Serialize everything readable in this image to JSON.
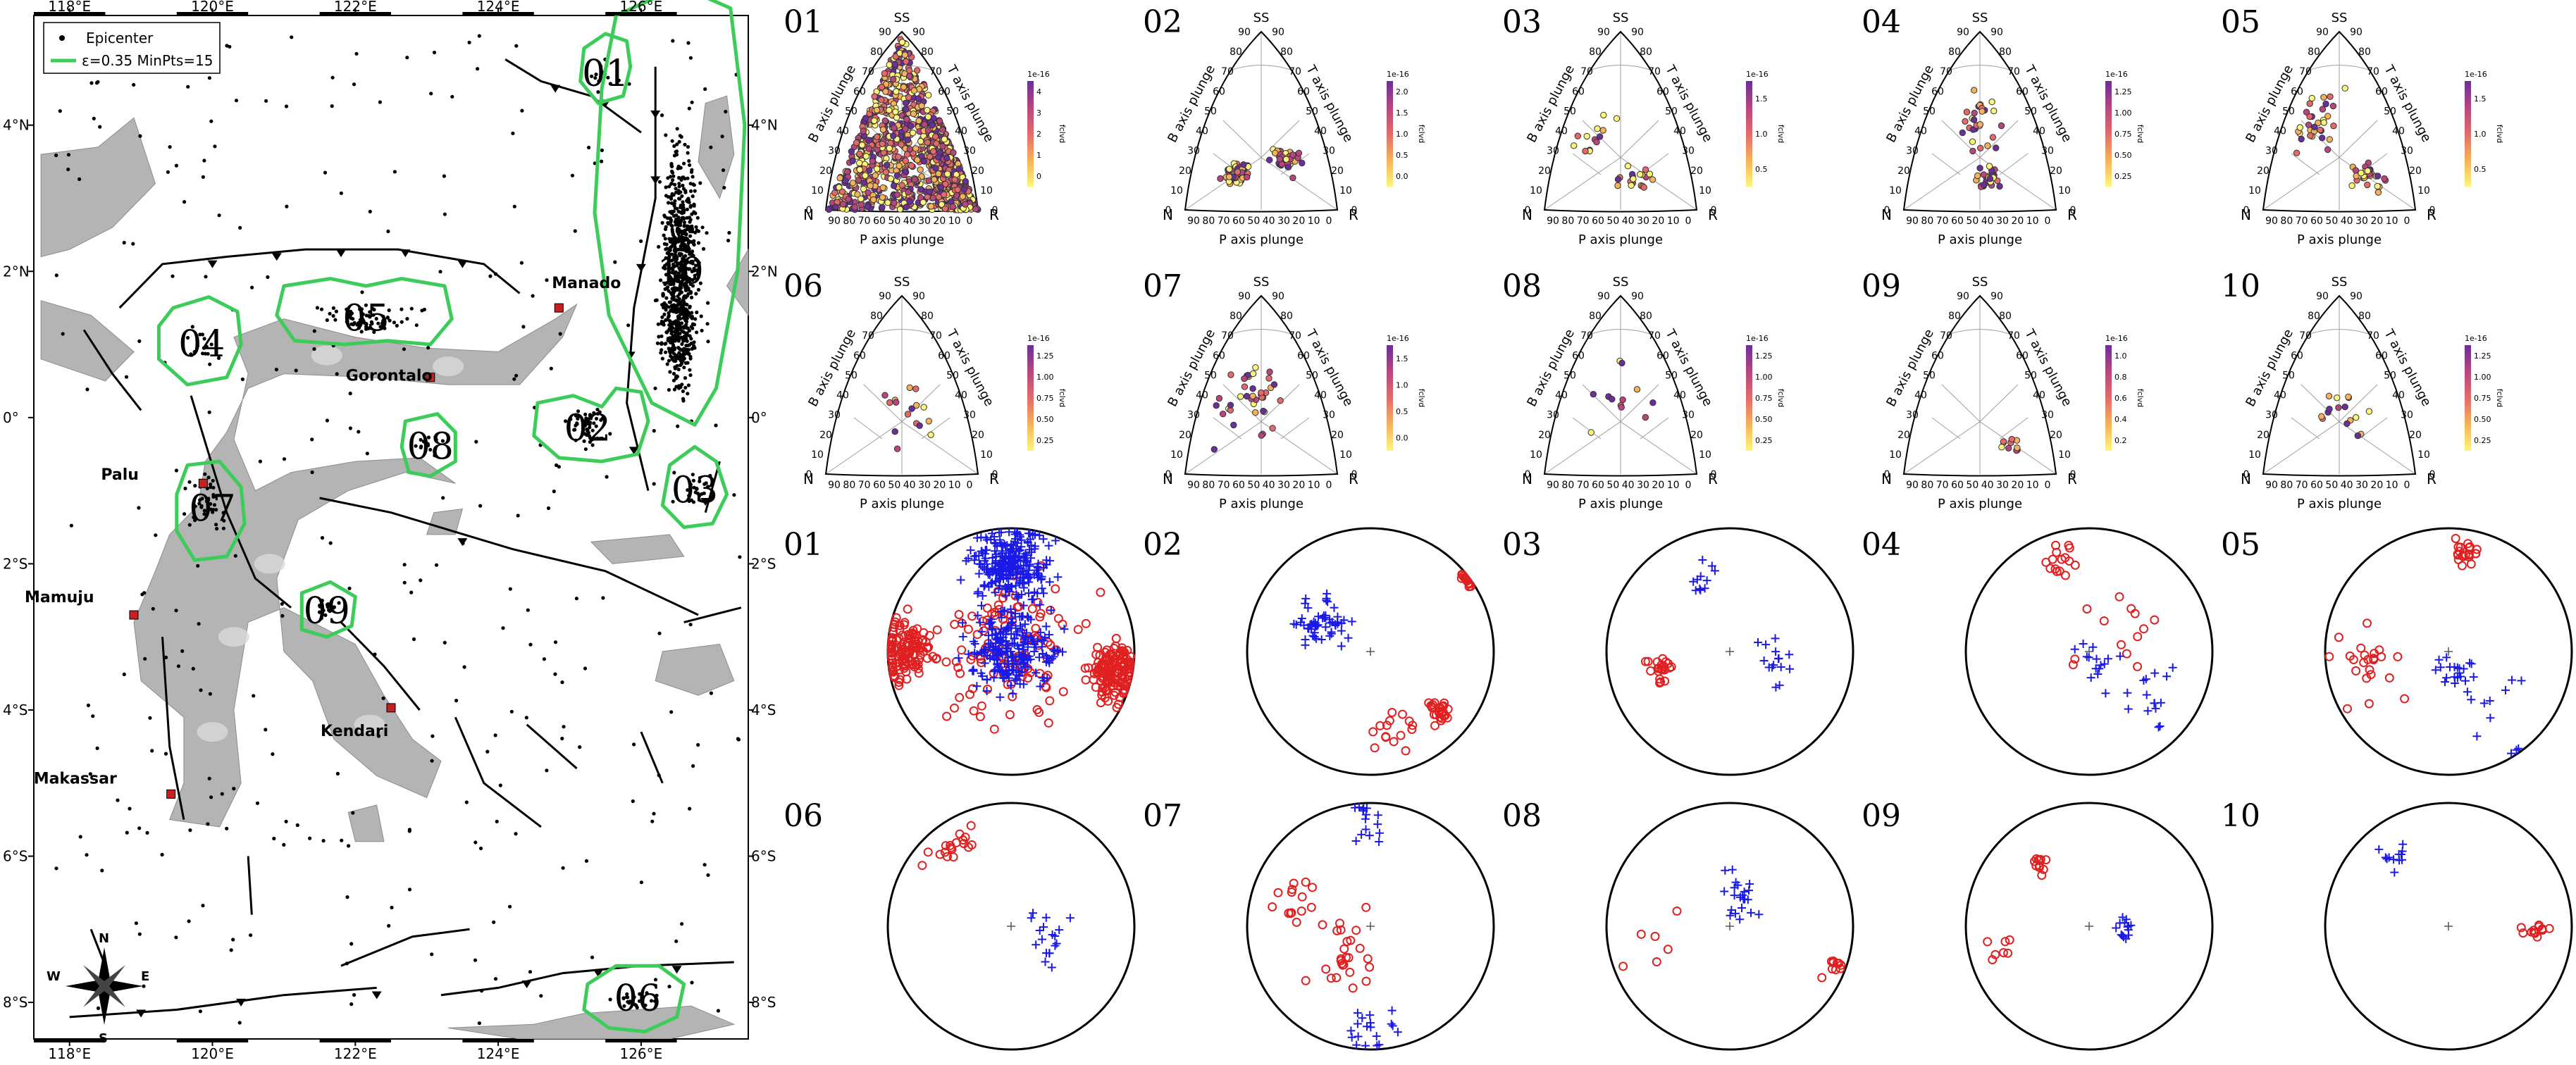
{
  "map": {
    "lon_ticks": [
      "118°E",
      "120°E",
      "122°E",
      "124°E",
      "126°E"
    ],
    "lat_ticks_left": [
      "4°N",
      "2°N",
      "0°",
      "2°S",
      "4°S",
      "6°S",
      "8°S"
    ],
    "lat_ticks_right": [
      "4°N",
      "2°N",
      "0°",
      "2°S",
      "4°S",
      "6°S",
      "8°S"
    ],
    "lon_range": [
      117.5,
      127.5
    ],
    "lat_range": [
      -8.5,
      5.5
    ],
    "legend": {
      "epicenter_label": "Epicenter",
      "cluster_label": "ε=0.35 MinPts=15",
      "cluster_color": "#3dcc5a"
    },
    "cities": [
      {
        "name": "Manado",
        "lon": 124.85,
        "lat": 1.5
      },
      {
        "name": "Gorontalo",
        "lon": 123.05,
        "lat": 0.55
      },
      {
        "name": "Palu",
        "lon": 119.87,
        "lat": -0.9
      },
      {
        "name": "Mamuju",
        "lon": 118.9,
        "lat": -2.7
      },
      {
        "name": "Kendari",
        "lon": 122.5,
        "lat": -3.97
      },
      {
        "name": "Makassar",
        "lon": 119.42,
        "lat": -5.15
      }
    ],
    "clusters": [
      {
        "label": "01",
        "lon": 125.5,
        "lat": 4.7
      },
      {
        "label": "02",
        "lon": 125.25,
        "lat": -0.15
      },
      {
        "label": "03",
        "lon": 126.75,
        "lat": -1.0
      },
      {
        "label": "04",
        "lon": 119.85,
        "lat": 1.0
      },
      {
        "label": "05",
        "lon": 122.15,
        "lat": 1.35
      },
      {
        "label": "06",
        "lon": 125.95,
        "lat": -7.95
      },
      {
        "label": "07",
        "lon": 120.0,
        "lat": -1.25
      },
      {
        "label": "08",
        "lon": 123.05,
        "lat": -0.4
      },
      {
        "label": "09",
        "lon": 121.6,
        "lat": -2.65
      },
      {
        "label": "10",
        "lon": 126.55,
        "lat": 2.0
      }
    ],
    "compass": [
      "N",
      "E",
      "S",
      "W"
    ]
  },
  "triangles": {
    "top_label": "SS",
    "left_axis_label": "B axis plunge",
    "right_axis_label": "T axis plunge",
    "bottom_axis_label": "P axis plunge",
    "corner_left": "N",
    "corner_right": "R",
    "axis_ticks": [
      "0",
      "10",
      "20",
      "30",
      "40",
      "50",
      "60",
      "70",
      "80",
      "90"
    ],
    "colorbar_scale": "1e-16",
    "colorbar_label": "fclvd",
    "panels": [
      {
        "label": "01",
        "cb_ticks": [
          "0",
          "1",
          "2",
          "3",
          "4"
        ]
      },
      {
        "label": "02",
        "cb_ticks": [
          "0.0",
          "0.5",
          "1.0",
          "1.5",
          "2.0"
        ]
      },
      {
        "label": "03",
        "cb_ticks": [
          "0.5",
          "1.0",
          "1.5"
        ]
      },
      {
        "label": "04",
        "cb_ticks": [
          "0.25",
          "0.50",
          "0.75",
          "1.00",
          "1.25"
        ]
      },
      {
        "label": "05",
        "cb_ticks": [
          "0.5",
          "1.0",
          "1.5"
        ]
      },
      {
        "label": "06",
        "cb_ticks": [
          "0.25",
          "0.50",
          "0.75",
          "1.00",
          "1.25"
        ]
      },
      {
        "label": "07",
        "cb_ticks": [
          "0.0",
          "0.5",
          "1.0",
          "1.5"
        ]
      },
      {
        "label": "08",
        "cb_ticks": [
          "0.25",
          "0.50",
          "0.75",
          "1.00",
          "1.25"
        ]
      },
      {
        "label": "09",
        "cb_ticks": [
          "0.2",
          "0.4",
          "0.6",
          "0.8",
          "1.0"
        ]
      },
      {
        "label": "10",
        "cb_ticks": [
          "0.25",
          "0.50",
          "0.75",
          "1.00",
          "1.25"
        ]
      }
    ]
  },
  "stereonets": {
    "p_color": "#e02020",
    "t_color": "#1a1ae6",
    "panels": [
      "01",
      "02",
      "03",
      "04",
      "05",
      "06",
      "07",
      "08",
      "09",
      "10"
    ]
  }
}
